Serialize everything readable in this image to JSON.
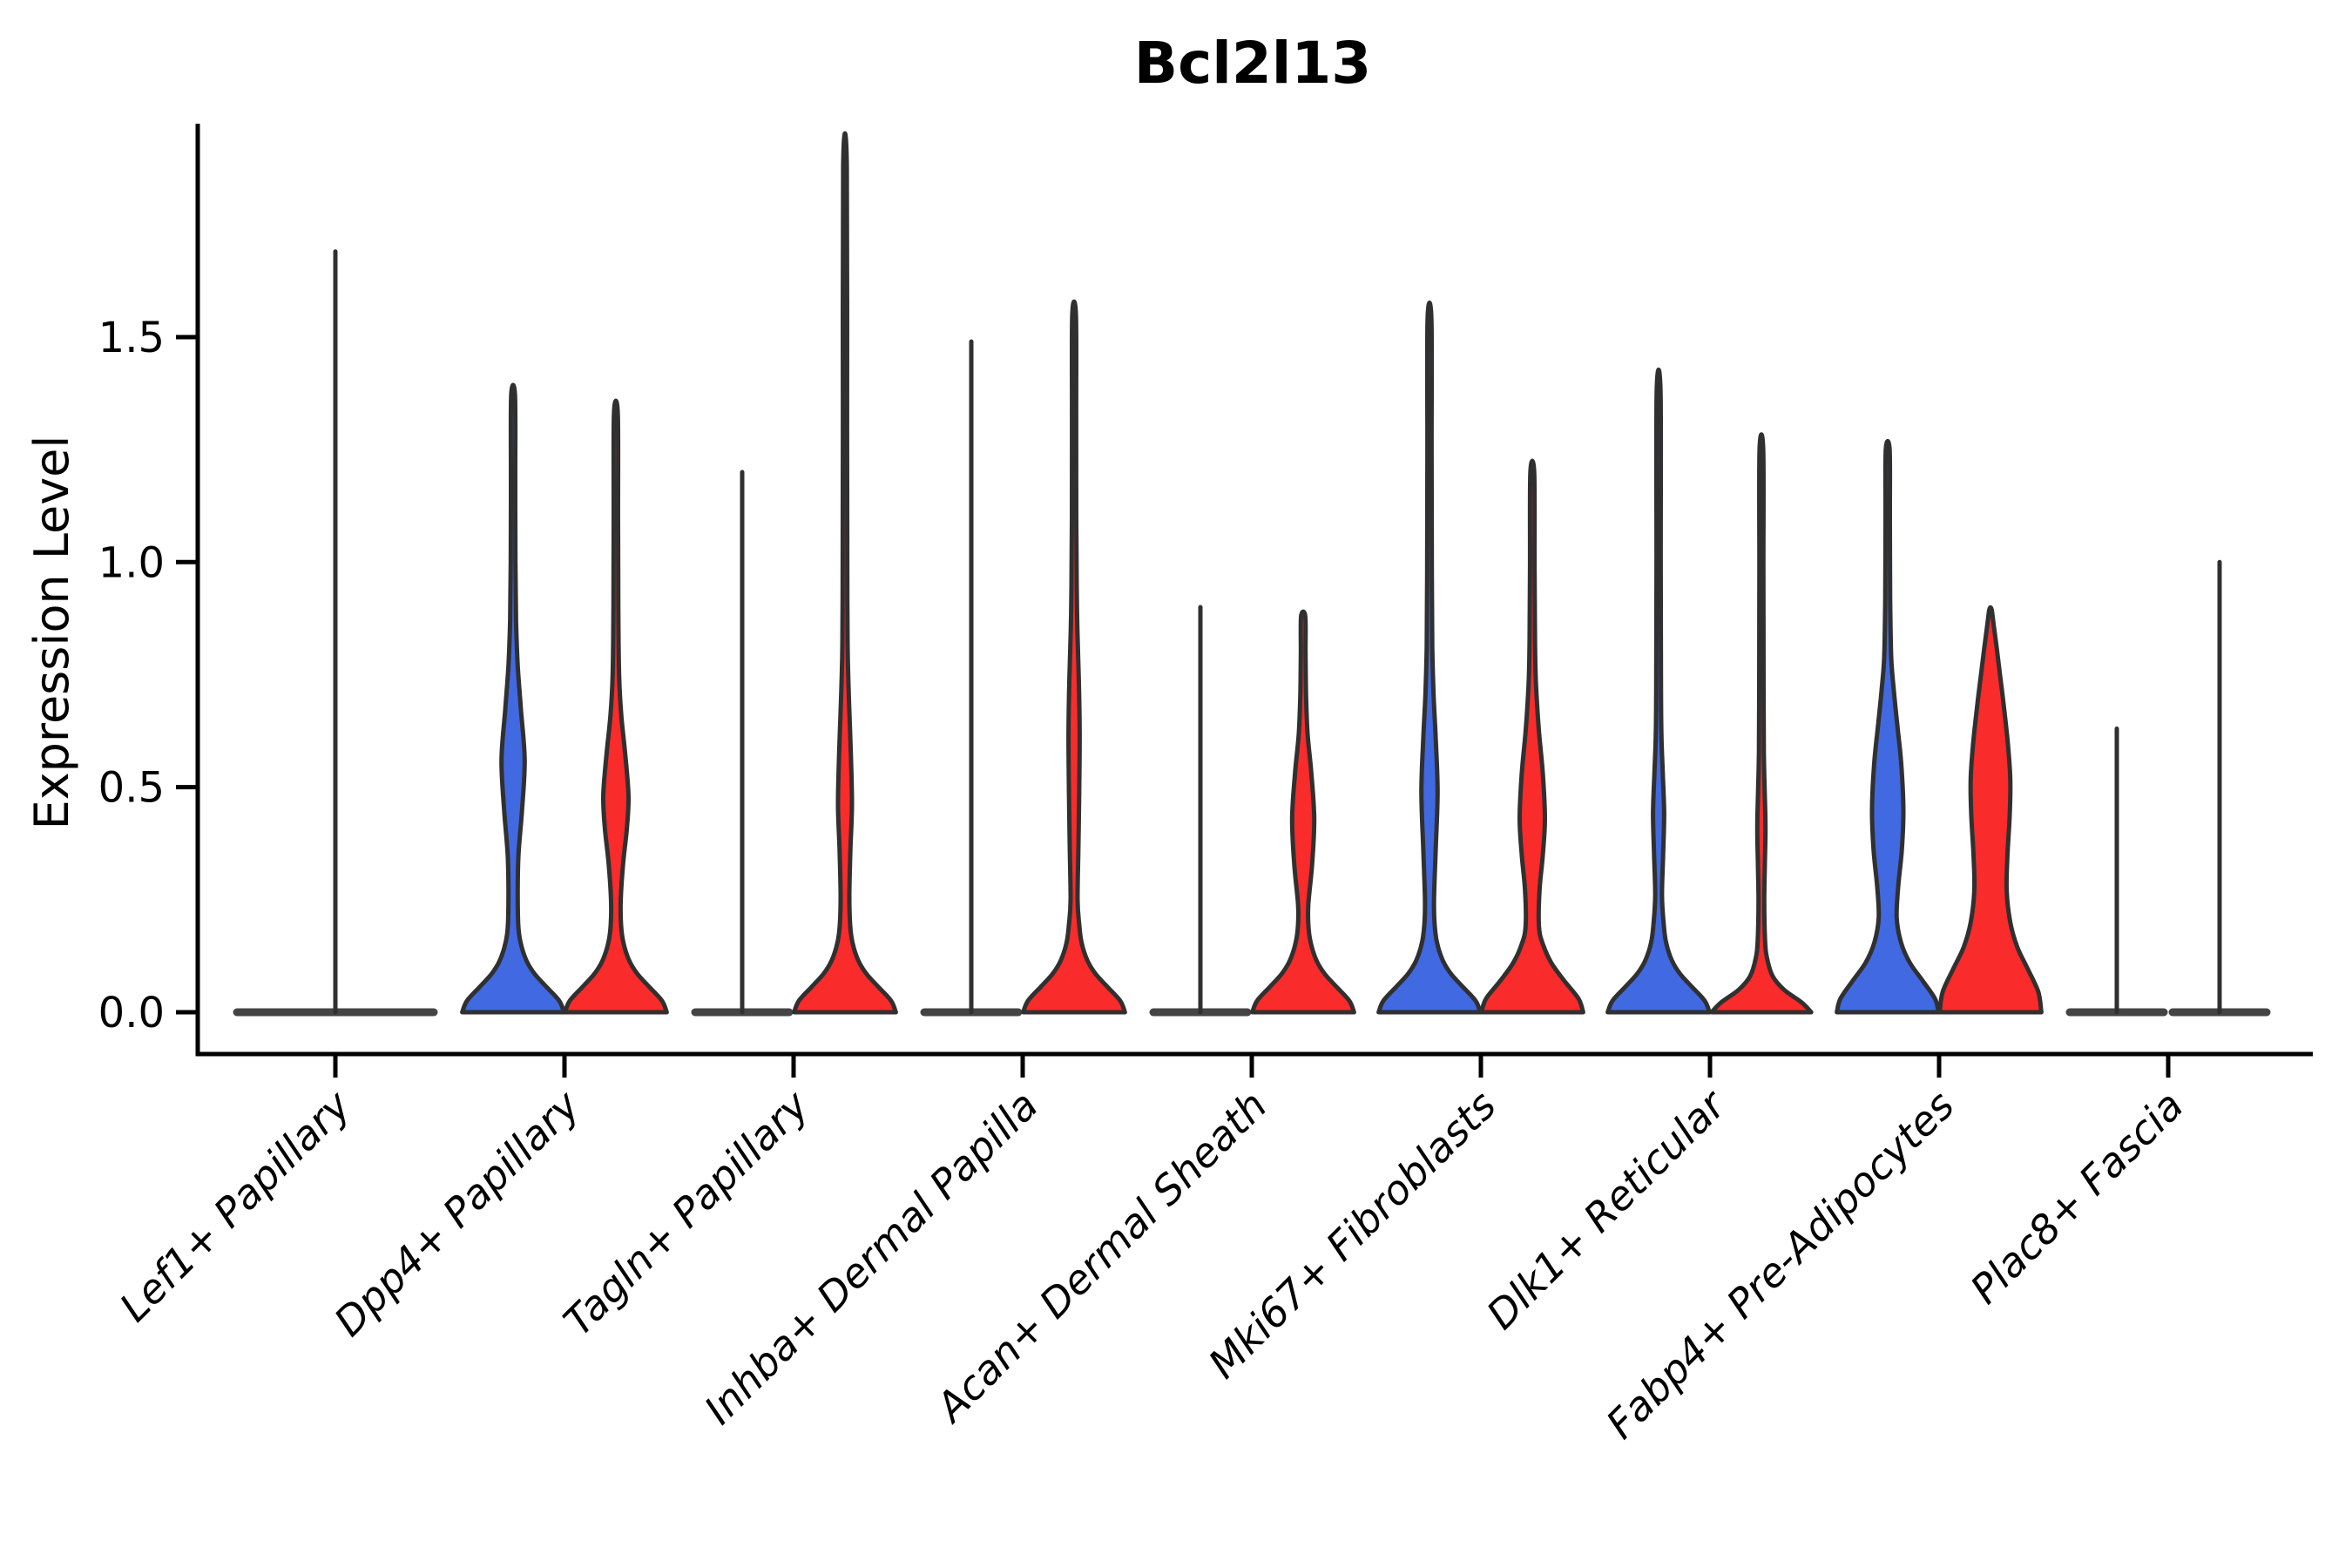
{
  "chart_data": {
    "type": "violin",
    "title": "Bcl2l13",
    "xlabel": "",
    "ylabel": "Expression Level",
    "ylim": [
      -0.09,
      1.97
    ],
    "grid": false,
    "legend": "none",
    "yticks": [
      {
        "label": "0.0",
        "value": 0.0
      },
      {
        "label": "0.5",
        "value": 0.5
      },
      {
        "label": "1.0",
        "value": 1.0
      },
      {
        "label": "1.5",
        "value": 1.5
      }
    ],
    "colors": {
      "blue": "#4169E1",
      "red": "#FA2B2B",
      "outline": "#303030",
      "flat_line": "#444444",
      "axis": "#000000"
    },
    "groups": [
      "blue",
      "red"
    ],
    "categories": [
      {
        "label": "Lef1+ Papillary",
        "violins": [
          {
            "group": "single",
            "kind": "flat",
            "max": 1.69,
            "width_frac": 2.0
          }
        ]
      },
      {
        "label": "Dpp4+ Papillary",
        "violins": [
          {
            "group": "blue",
            "kind": "body",
            "max": 1.37,
            "profile": [
              [
                0,
                0.99
              ],
              [
                0.025,
                0.9
              ],
              [
                0.055,
                0.66
              ],
              [
                0.085,
                0.42
              ],
              [
                0.115,
                0.26
              ],
              [
                0.155,
                0.145
              ],
              [
                0.195,
                0.1
              ],
              [
                0.27,
                0.09
              ],
              [
                0.35,
                0.105
              ],
              [
                0.45,
                0.175
              ],
              [
                0.56,
                0.225
              ],
              [
                0.67,
                0.155
              ],
              [
                0.77,
                0.09
              ],
              [
                0.87,
                0.058
              ],
              [
                1.0,
                0.045
              ],
              [
                1.18,
                0.042
              ],
              [
                1.37,
                0.038
              ]
            ]
          },
          {
            "group": "red",
            "kind": "body",
            "max": 1.33,
            "profile": [
              [
                0,
                0.99
              ],
              [
                0.025,
                0.9
              ],
              [
                0.055,
                0.66
              ],
              [
                0.085,
                0.42
              ],
              [
                0.115,
                0.26
              ],
              [
                0.155,
                0.145
              ],
              [
                0.195,
                0.1
              ],
              [
                0.25,
                0.095
              ],
              [
                0.33,
                0.14
              ],
              [
                0.41,
                0.215
              ],
              [
                0.48,
                0.245
              ],
              [
                0.57,
                0.185
              ],
              [
                0.66,
                0.105
              ],
              [
                0.75,
                0.062
              ],
              [
                0.9,
                0.047
              ],
              [
                1.1,
                0.042
              ],
              [
                1.33,
                0.038
              ]
            ]
          }
        ]
      },
      {
        "label": "Tagln+ Papillary",
        "violins": [
          {
            "group": "blue",
            "kind": "flat",
            "max": 1.2
          },
          {
            "group": "red",
            "kind": "body",
            "max": 1.88,
            "profile": [
              [
                0,
                0.99
              ],
              [
                0.025,
                0.9
              ],
              [
                0.055,
                0.66
              ],
              [
                0.085,
                0.42
              ],
              [
                0.115,
                0.26
              ],
              [
                0.155,
                0.145
              ],
              [
                0.195,
                0.1
              ],
              [
                0.26,
                0.085
              ],
              [
                0.36,
                0.105
              ],
              [
                0.46,
                0.135
              ],
              [
                0.57,
                0.115
              ],
              [
                0.68,
                0.082
              ],
              [
                0.79,
                0.055
              ],
              [
                0.92,
                0.046
              ],
              [
                1.3,
                0.041
              ],
              [
                1.88,
                0.036
              ]
            ]
          }
        ]
      },
      {
        "label": "Inhba+ Dermal Papilla",
        "violins": [
          {
            "group": "blue",
            "kind": "flat",
            "max": 1.49
          },
          {
            "group": "red",
            "kind": "body",
            "max": 1.55,
            "profile": [
              [
                0,
                0.99
              ],
              [
                0.025,
                0.9
              ],
              [
                0.055,
                0.66
              ],
              [
                0.085,
                0.42
              ],
              [
                0.115,
                0.26
              ],
              [
                0.155,
                0.145
              ],
              [
                0.195,
                0.1
              ],
              [
                0.25,
                0.068
              ],
              [
                0.37,
                0.085
              ],
              [
                0.49,
                0.1
              ],
              [
                0.62,
                0.108
              ],
              [
                0.74,
                0.092
              ],
              [
                0.85,
                0.065
              ],
              [
                0.95,
                0.05
              ],
              [
                1.1,
                0.043
              ],
              [
                1.32,
                0.04
              ],
              [
                1.55,
                0.036
              ]
            ]
          }
        ]
      },
      {
        "label": "Acan+ Dermal Sheath",
        "violins": [
          {
            "group": "blue",
            "kind": "flat",
            "max": 0.9
          },
          {
            "group": "red",
            "kind": "body",
            "max": 0.88,
            "profile": [
              [
                0,
                0.99
              ],
              [
                0.025,
                0.9
              ],
              [
                0.055,
                0.66
              ],
              [
                0.085,
                0.42
              ],
              [
                0.115,
                0.26
              ],
              [
                0.155,
                0.145
              ],
              [
                0.195,
                0.1
              ],
              [
                0.24,
                0.1
              ],
              [
                0.33,
                0.175
              ],
              [
                0.43,
                0.215
              ],
              [
                0.53,
                0.16
              ],
              [
                0.62,
                0.085
              ],
              [
                0.71,
                0.055
              ],
              [
                0.8,
                0.046
              ],
              [
                0.88,
                0.04
              ]
            ]
          }
        ]
      },
      {
        "label": "Mki67+ Fibroblasts",
        "violins": [
          {
            "group": "blue",
            "kind": "body",
            "max": 1.54,
            "profile": [
              [
                0,
                0.99
              ],
              [
                0.025,
                0.9
              ],
              [
                0.055,
                0.66
              ],
              [
                0.085,
                0.42
              ],
              [
                0.115,
                0.26
              ],
              [
                0.155,
                0.145
              ],
              [
                0.195,
                0.1
              ],
              [
                0.25,
                0.088
              ],
              [
                0.36,
                0.12
              ],
              [
                0.49,
                0.158
              ],
              [
                0.61,
                0.12
              ],
              [
                0.71,
                0.078
              ],
              [
                0.81,
                0.055
              ],
              [
                0.97,
                0.046
              ],
              [
                1.25,
                0.041
              ],
              [
                1.54,
                0.037
              ]
            ]
          },
          {
            "group": "red",
            "kind": "body",
            "max": 1.2,
            "profile": [
              [
                0,
                0.99
              ],
              [
                0.03,
                0.9
              ],
              [
                0.07,
                0.62
              ],
              [
                0.11,
                0.37
              ],
              [
                0.15,
                0.21
              ],
              [
                0.19,
                0.13
              ],
              [
                0.27,
                0.14
              ],
              [
                0.35,
                0.205
              ],
              [
                0.43,
                0.245
              ],
              [
                0.53,
                0.205
              ],
              [
                0.63,
                0.125
              ],
              [
                0.73,
                0.072
              ],
              [
                0.83,
                0.052
              ],
              [
                1.0,
                0.044
              ],
              [
                1.2,
                0.038
              ]
            ]
          }
        ]
      },
      {
        "label": "Dlk1+ Reticular",
        "violins": [
          {
            "group": "blue",
            "kind": "body",
            "max": 1.38,
            "profile": [
              [
                0,
                0.99
              ],
              [
                0.025,
                0.9
              ],
              [
                0.055,
                0.66
              ],
              [
                0.085,
                0.42
              ],
              [
                0.115,
                0.26
              ],
              [
                0.155,
                0.145
              ],
              [
                0.195,
                0.1
              ],
              [
                0.26,
                0.066
              ],
              [
                0.35,
                0.088
              ],
              [
                0.44,
                0.108
              ],
              [
                0.53,
                0.082
              ],
              [
                0.62,
                0.054
              ],
              [
                0.75,
                0.046
              ],
              [
                1.0,
                0.041
              ],
              [
                1.38,
                0.037
              ]
            ]
          },
          {
            "group": "red",
            "kind": "body",
            "max": 1.25,
            "profile": [
              [
                0,
                0.97
              ],
              [
                0.022,
                0.78
              ],
              [
                0.05,
                0.44
              ],
              [
                0.08,
                0.22
              ],
              [
                0.12,
                0.11
              ],
              [
                0.16,
                0.072
              ],
              [
                0.25,
                0.056
              ],
              [
                0.33,
                0.068
              ],
              [
                0.41,
                0.08
              ],
              [
                0.5,
                0.062
              ],
              [
                0.58,
                0.048
              ],
              [
                0.72,
                0.042
              ],
              [
                0.98,
                0.039
              ],
              [
                1.25,
                0.036
              ]
            ]
          }
        ]
      },
      {
        "label": "Fabp4+ Pre-Adipocytes",
        "violins": [
          {
            "group": "blue",
            "kind": "body",
            "max": 1.25,
            "profile": [
              [
                0,
                0.99
              ],
              [
                0.03,
                0.92
              ],
              [
                0.07,
                0.68
              ],
              [
                0.11,
                0.43
              ],
              [
                0.155,
                0.26
              ],
              [
                0.21,
                0.175
              ],
              [
                0.28,
                0.205
              ],
              [
                0.36,
                0.275
              ],
              [
                0.45,
                0.305
              ],
              [
                0.55,
                0.265
              ],
              [
                0.64,
                0.185
              ],
              [
                0.72,
                0.115
              ],
              [
                0.79,
                0.068
              ],
              [
                0.92,
                0.048
              ],
              [
                1.1,
                0.042
              ],
              [
                1.25,
                0.037
              ]
            ]
          },
          {
            "group": "red",
            "kind": "body",
            "max": 0.9,
            "profile": [
              [
                0,
                0.99
              ],
              [
                0.045,
                0.93
              ],
              [
                0.095,
                0.73
              ],
              [
                0.145,
                0.52
              ],
              [
                0.2,
                0.385
              ],
              [
                0.27,
                0.315
              ],
              [
                0.35,
                0.33
              ],
              [
                0.44,
                0.375
              ],
              [
                0.52,
                0.385
              ],
              [
                0.6,
                0.335
              ],
              [
                0.68,
                0.26
              ],
              [
                0.75,
                0.185
              ],
              [
                0.81,
                0.12
              ],
              [
                0.86,
                0.062
              ],
              [
                0.895,
                0.022
              ]
            ]
          }
        ]
      },
      {
        "label": "Plac8+ Fascia",
        "violins": [
          {
            "group": "blue",
            "kind": "flat",
            "max": 0.63
          },
          {
            "group": "red",
            "kind": "flat",
            "max": 1.0
          }
        ]
      }
    ]
  }
}
